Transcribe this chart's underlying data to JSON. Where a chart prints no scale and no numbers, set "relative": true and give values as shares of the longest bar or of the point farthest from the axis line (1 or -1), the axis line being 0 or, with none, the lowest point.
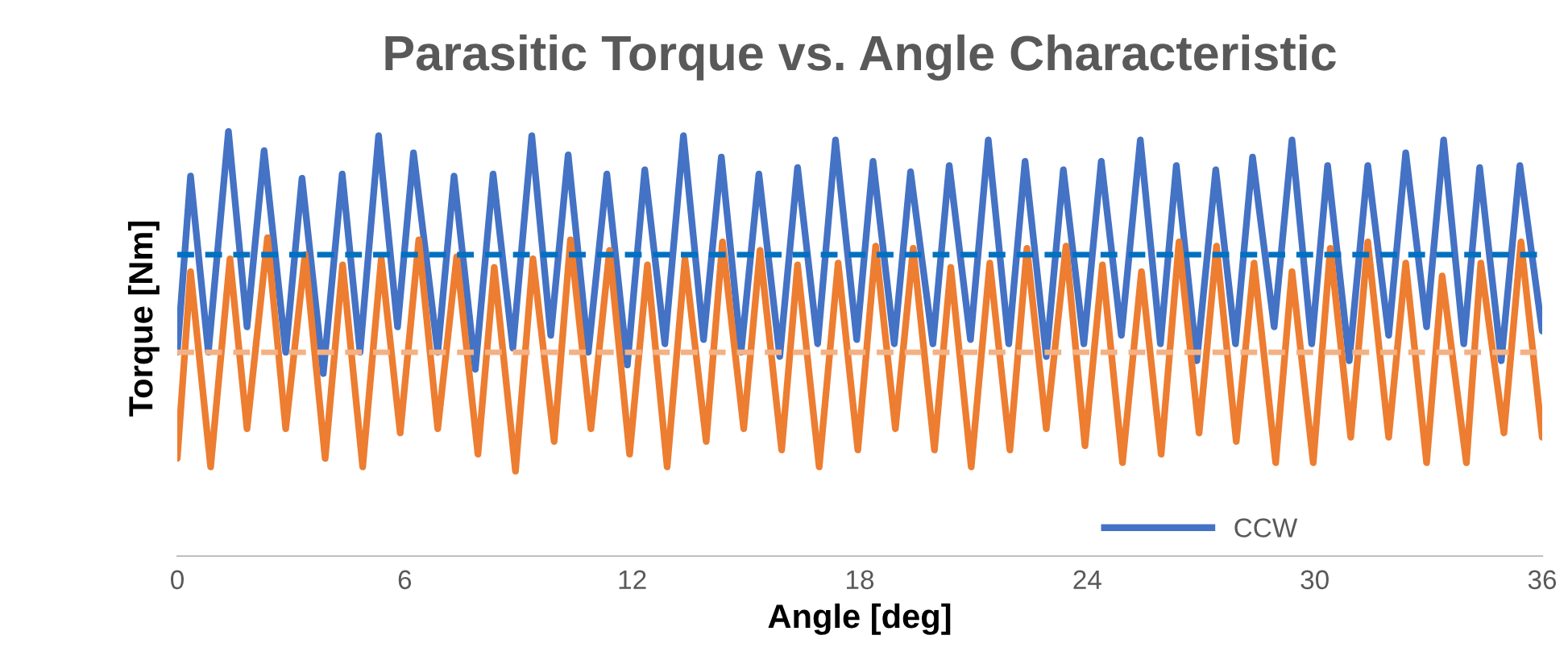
{
  "chart_data": {
    "type": "line",
    "title": "Parasitic Torque vs. Angle Characteristic",
    "xlabel": "Angle [deg]",
    "ylabel": "Torque [Nm]",
    "relative": true,
    "xlim": [
      0,
      36
    ],
    "xticks": [
      0,
      6,
      12,
      18,
      24,
      30,
      36
    ],
    "legend": "bottom",
    "line_style": "solid",
    "series": [
      {
        "name": "CCW",
        "color": "#4472c4",
        "x": [
          0,
          0.35,
          0.82,
          1.35,
          1.84,
          2.29,
          2.86,
          3.29,
          3.85,
          4.35,
          4.82,
          5.31,
          5.81,
          6.23,
          6.87,
          7.3,
          7.86,
          8.33,
          8.85,
          9.35,
          9.85,
          10.31,
          10.84,
          11.33,
          11.87,
          12.33,
          12.86,
          13.35,
          13.88,
          14.35,
          14.87,
          15.34,
          15.89,
          16.36,
          16.89,
          17.36,
          17.92,
          18.35,
          18.91,
          19.34,
          19.93,
          20.36,
          20.92,
          21.39,
          21.93,
          22.36,
          22.92,
          23.37,
          23.91,
          24.37,
          24.9,
          25.4,
          25.93,
          26.35,
          26.89,
          27.39,
          27.91,
          28.36,
          28.93,
          29.4,
          29.92,
          30.34,
          30.91,
          31.4,
          31.95,
          32.4,
          32.95,
          33.4,
          33.93,
          34.35,
          34.92,
          35.41,
          36.0
        ],
        "values": [
          0.48,
          0.895,
          0.48,
          1.0,
          0.54,
          0.955,
          0.48,
          0.89,
          0.43,
          0.9,
          0.48,
          0.99,
          0.54,
          0.95,
          0.48,
          0.895,
          0.44,
          0.9,
          0.49,
          0.99,
          0.52,
          0.945,
          0.48,
          0.9,
          0.45,
          0.91,
          0.5,
          0.99,
          0.51,
          0.94,
          0.48,
          0.9,
          0.47,
          0.915,
          0.5,
          0.98,
          0.51,
          0.93,
          0.5,
          0.905,
          0.5,
          0.92,
          0.51,
          0.98,
          0.5,
          0.93,
          0.47,
          0.91,
          0.5,
          0.93,
          0.52,
          0.98,
          0.5,
          0.92,
          0.46,
          0.91,
          0.5,
          0.94,
          0.54,
          0.98,
          0.5,
          0.92,
          0.46,
          0.92,
          0.52,
          0.95,
          0.54,
          0.98,
          0.5,
          0.915,
          0.46,
          0.92,
          0.53
        ]
      },
      {
        "color": "#ed7d31",
        "x": [
          0,
          0.35,
          0.88,
          1.39,
          1.84,
          2.38,
          2.86,
          3.37,
          3.9,
          4.36,
          4.89,
          5.38,
          5.88,
          6.37,
          6.87,
          7.37,
          7.93,
          8.36,
          8.92,
          9.38,
          9.94,
          10.37,
          10.91,
          11.4,
          11.93,
          12.4,
          12.92,
          13.39,
          13.95,
          14.38,
          14.94,
          15.37,
          15.94,
          16.36,
          16.93,
          17.43,
          17.95,
          18.42,
          18.94,
          19.41,
          19.97,
          20.4,
          20.94,
          21.43,
          21.96,
          22.41,
          22.92,
          23.44,
          23.94,
          24.4,
          24.93,
          25.43,
          25.95,
          26.42,
          26.95,
          27.41,
          27.93,
          28.4,
          28.97,
          29.4,
          29.96,
          30.41,
          30.95,
          31.4,
          31.95,
          32.4,
          32.95,
          33.36,
          34.0,
          34.38,
          34.99,
          35.44,
          36.0
        ],
        "values": [
          0.23,
          0.67,
          0.21,
          0.7,
          0.3,
          0.75,
          0.3,
          0.71,
          0.23,
          0.686,
          0.21,
          0.7,
          0.29,
          0.745,
          0.3,
          0.705,
          0.24,
          0.68,
          0.2,
          0.7,
          0.27,
          0.745,
          0.3,
          0.72,
          0.24,
          0.686,
          0.21,
          0.7,
          0.27,
          0.74,
          0.3,
          0.72,
          0.25,
          0.686,
          0.21,
          0.69,
          0.25,
          0.73,
          0.3,
          0.725,
          0.25,
          0.68,
          0.21,
          0.69,
          0.25,
          0.725,
          0.3,
          0.73,
          0.26,
          0.686,
          0.22,
          0.67,
          0.24,
          0.74,
          0.29,
          0.73,
          0.27,
          0.69,
          0.22,
          0.67,
          0.22,
          0.725,
          0.28,
          0.74,
          0.28,
          0.69,
          0.22,
          0.66,
          0.22,
          0.69,
          0.29,
          0.74,
          0.28
        ]
      }
    ],
    "ref_lines": [
      {
        "axis": "y",
        "value": 0.71,
        "color": "#0070c0",
        "line_style": "dashed"
      },
      {
        "axis": "y",
        "value": 0.48,
        "color": "#f4b183",
        "line_style": "dashed"
      }
    ]
  }
}
